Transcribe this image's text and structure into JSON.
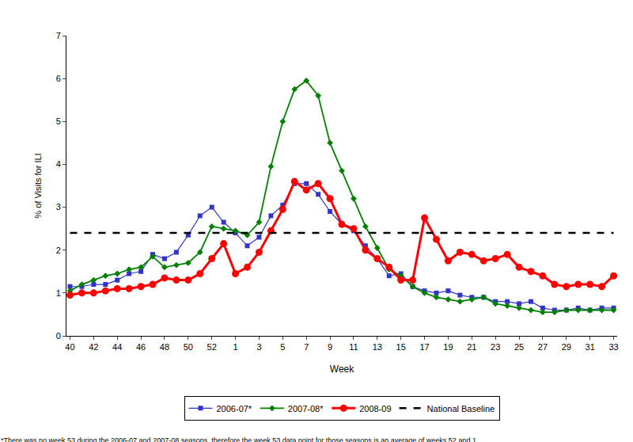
{
  "chart_data": {
    "type": "line",
    "xlabel": "Week",
    "ylabel": "% of Visits for ILI",
    "categories": [
      40,
      null,
      42,
      null,
      44,
      null,
      46,
      null,
      48,
      null,
      50,
      null,
      52,
      null,
      1,
      null,
      3,
      null,
      5,
      null,
      7,
      null,
      9,
      null,
      11,
      null,
      13,
      null,
      15,
      null,
      17,
      null,
      19,
      null,
      21,
      null,
      23,
      null,
      25,
      null,
      27,
      null,
      29,
      null,
      31,
      null,
      33
    ],
    "series": [
      {
        "name": "2006-07*",
        "color": "#3333cc",
        "marker": "square",
        "line_style": "solid",
        "values": [
          1.15,
          1.15,
          1.2,
          1.2,
          1.3,
          1.45,
          1.5,
          1.9,
          1.8,
          1.95,
          2.35,
          2.8,
          3.0,
          2.65,
          2.4,
          2.1,
          2.3,
          2.8,
          3.05,
          3.55,
          3.55,
          3.3,
          2.9,
          2.6,
          2.45,
          2.1,
          1.8,
          1.4,
          1.45,
          1.15,
          1.05,
          1.0,
          1.05,
          0.95,
          0.9,
          0.9,
          0.8,
          0.8,
          0.75,
          0.8,
          0.65,
          0.6,
          0.6,
          0.65,
          0.6,
          0.65,
          0.65
        ]
      },
      {
        "name": "2007-08*",
        "color": "#008000",
        "marker": "diamond",
        "line_style": "solid",
        "values": [
          1.05,
          1.2,
          1.3,
          1.4,
          1.45,
          1.55,
          1.6,
          1.85,
          1.6,
          1.65,
          1.7,
          1.95,
          2.55,
          2.5,
          2.45,
          2.35,
          2.65,
          3.95,
          5.0,
          5.75,
          5.95,
          5.6,
          4.5,
          3.85,
          3.2,
          2.55,
          2.05,
          1.55,
          1.4,
          1.15,
          1.0,
          0.9,
          0.85,
          0.8,
          0.85,
          0.9,
          0.75,
          0.7,
          0.65,
          0.6,
          0.55,
          0.55,
          0.6,
          0.6,
          0.6,
          0.6,
          0.6
        ]
      },
      {
        "name": "2008-09",
        "color": "#ff0000",
        "marker": "circle",
        "line_style": "solid",
        "values": [
          0.95,
          1.0,
          1.0,
          1.05,
          1.1,
          1.1,
          1.15,
          1.2,
          1.35,
          1.3,
          1.3,
          1.45,
          1.8,
          2.15,
          1.45,
          1.6,
          1.95,
          2.45,
          2.95,
          3.6,
          3.4,
          3.55,
          3.2,
          2.6,
          2.5,
          2.0,
          1.8,
          1.6,
          1.3,
          1.3,
          2.75,
          2.25,
          1.75,
          1.95,
          1.9,
          1.75,
          1.8,
          1.9,
          1.6,
          1.5,
          1.4,
          1.2,
          1.15,
          1.2,
          1.2,
          1.15,
          1.4
        ]
      },
      {
        "name": "National Baseline",
        "color": "#000000",
        "marker": "none",
        "line_style": "dash",
        "values": [
          2.4,
          2.4,
          2.4,
          2.4,
          2.4,
          2.4,
          2.4,
          2.4,
          2.4,
          2.4,
          2.4,
          2.4,
          2.4,
          2.4,
          2.4,
          2.4,
          2.4,
          2.4,
          2.4,
          2.4,
          2.4,
          2.4,
          2.4,
          2.4,
          2.4,
          2.4,
          2.4,
          2.4,
          2.4,
          2.4,
          2.4,
          2.4,
          2.4,
          2.4,
          2.4,
          2.4,
          2.4,
          2.4,
          2.4,
          2.4,
          2.4,
          2.4,
          2.4,
          2.4,
          2.4,
          2.4,
          2.4
        ]
      }
    ],
    "ylim": [
      0,
      7
    ],
    "yticks": [
      0,
      1,
      2,
      3,
      4,
      5,
      6,
      7
    ],
    "grid": false,
    "legend": "bottom",
    "annotations": [
      "*There was no week 53 during the 2006-07 and 2007-08 seasons, therefore the week 53 data point for those seasons is an average of weeks 52 and 1."
    ]
  }
}
